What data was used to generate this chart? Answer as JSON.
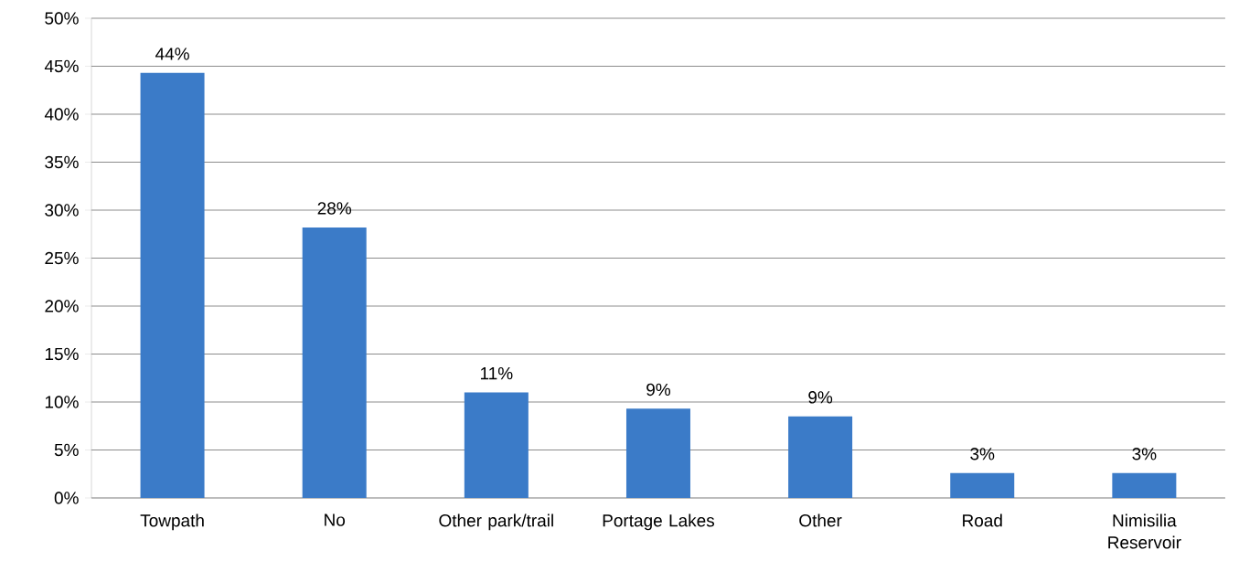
{
  "chart_data": {
    "type": "bar",
    "categories": [
      "Towpath",
      "No",
      "Other park/trail",
      "Portage Lakes",
      "Other",
      "Road",
      "Nimisilia Reservoir"
    ],
    "values": [
      44.3,
      28.2,
      11,
      9.3,
      8.5,
      2.6,
      2.6
    ],
    "value_labels": [
      "44%",
      "28%",
      "11%",
      "9%",
      "9%",
      "3%",
      "3%"
    ],
    "color": "#3b7bc8",
    "ylim": [
      0,
      50
    ],
    "yticks": [
      {
        "value": 0,
        "label": "0%"
      },
      {
        "value": 5,
        "label": "5%"
      },
      {
        "value": 10,
        "label": "10%"
      },
      {
        "value": 15,
        "label": "15%"
      },
      {
        "value": 20,
        "label": "20%"
      },
      {
        "value": 25,
        "label": "25%"
      },
      {
        "value": 30,
        "label": "30%"
      },
      {
        "value": 35,
        "label": "35%"
      },
      {
        "value": 40,
        "label": "40%"
      },
      {
        "value": 45,
        "label": "45%"
      },
      {
        "value": 50,
        "label": "50%"
      }
    ],
    "grid": "y"
  }
}
